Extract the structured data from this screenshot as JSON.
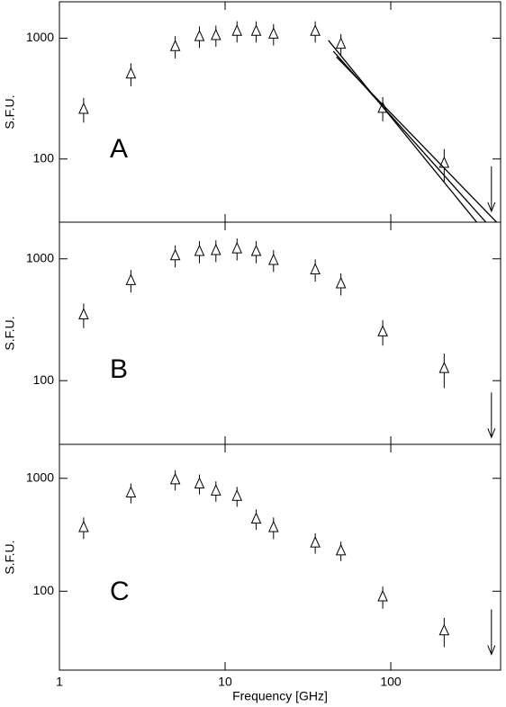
{
  "chart_data": [
    {
      "type": "scatter",
      "label": "A",
      "ylabel": "S.F.U.",
      "log_x": true,
      "log_y": true,
      "xlim": [
        1,
        460
      ],
      "ylim": [
        30,
        2000
      ],
      "xticks": [
        1,
        10,
        100
      ],
      "yticks": [
        100,
        1000
      ],
      "show_xtick_labels": false,
      "x": [
        1.4,
        2.7,
        5,
        7,
        8.8,
        11.8,
        15.4,
        19.6,
        35,
        50,
        89.4,
        210
      ],
      "series": [
        {
          "color": "#000000",
          "marker": "triangle",
          "values": [
            260,
            510,
            860,
            1040,
            1060,
            1150,
            1150,
            1090,
            1150,
            900,
            265,
            93
          ],
          "errors": [
            60,
            110,
            180,
            210,
            210,
            230,
            230,
            220,
            230,
            180,
            60,
            28
          ]
        }
      ],
      "upper_limit": {
        "x": 405,
        "value": 87
      },
      "lines": [
        {
          "x": [
            42,
            330
          ],
          "y": [
            960,
            30
          ]
        },
        {
          "x": [
            45,
            375
          ],
          "y": [
            780,
            30
          ]
        },
        {
          "x": [
            47,
            435
          ],
          "y": [
            700,
            30
          ]
        }
      ]
    },
    {
      "type": "scatter",
      "label": "B",
      "ylabel": "S.F.U.",
      "log_x": true,
      "log_y": true,
      "xlim": [
        1,
        460
      ],
      "ylim": [
        30,
        2000
      ],
      "xticks": [
        1,
        10,
        100
      ],
      "yticks": [
        100,
        1000
      ],
      "show_xtick_labels": false,
      "x": [
        1.4,
        2.7,
        5,
        7,
        8.8,
        11.8,
        15.4,
        19.6,
        35,
        50,
        89.4,
        210
      ],
      "series": [
        {
          "color": "#000000",
          "marker": "triangle",
          "values": [
            350,
            670,
            1070,
            1160,
            1180,
            1220,
            1160,
            980,
            820,
            630,
            254,
            127
          ],
          "errors": [
            80,
            140,
            220,
            240,
            240,
            250,
            240,
            200,
            170,
            130,
            60,
            40
          ]
        }
      ],
      "upper_limit": {
        "x": 405,
        "value": 80
      }
    },
    {
      "type": "scatter",
      "label": "C",
      "ylabel": "S.F.U.",
      "xlabel": "Frequency [GHz]",
      "log_x": true,
      "log_y": true,
      "xlim": [
        1,
        460
      ],
      "ylim": [
        20,
        2000
      ],
      "xticks": [
        1,
        10,
        100
      ],
      "yticks": [
        100,
        1000
      ],
      "show_xtick_labels": true,
      "x": [
        1.4,
        2.7,
        5,
        7,
        8.8,
        11.8,
        15.4,
        19.6,
        35,
        50,
        89.4,
        210
      ],
      "series": [
        {
          "color": "#000000",
          "marker": "triangle",
          "values": [
            370,
            750,
            980,
            900,
            780,
            700,
            440,
            370,
            270,
            230,
            90,
            45
          ],
          "errors": [
            80,
            150,
            200,
            180,
            160,
            140,
            90,
            80,
            55,
            45,
            20,
            13
          ]
        }
      ],
      "upper_limit": {
        "x": 405,
        "value": 69
      }
    }
  ]
}
